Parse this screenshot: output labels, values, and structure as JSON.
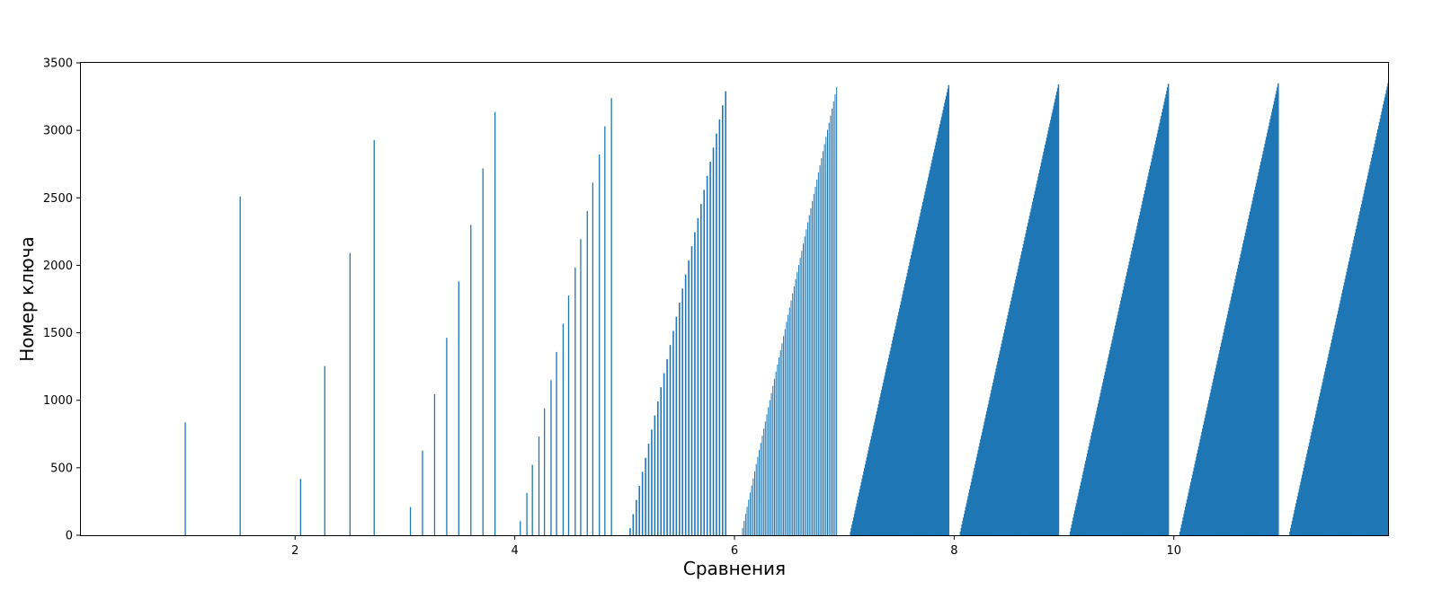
{
  "chart_data": {
    "type": "bar",
    "title": "",
    "xlabel": "Сравнения",
    "ylabel": "Номер ключа",
    "xlim": [
      0.05,
      11.95
    ],
    "ylim": [
      0,
      3500
    ],
    "grid": false,
    "legend": "none",
    "bar_color": "#1f77b4",
    "xticks": [
      2,
      4,
      6,
      8,
      10
    ],
    "yticks": [
      0,
      500,
      1000,
      1500,
      2000,
      2500,
      3000,
      3500
    ],
    "xtick_labels": [
      "2",
      "4",
      "6",
      "8",
      "10"
    ],
    "ytick_labels": [
      "0",
      "500",
      "1000",
      "1500",
      "2000",
      "2500",
      "3000",
      "3500"
    ],
    "points": [
      {
        "x": 1.0,
        "y": 836
      },
      {
        "x": 1.5,
        "y": 2510
      },
      {
        "x": 2.05,
        "y": 418
      },
      {
        "x": 2.27,
        "y": 1254
      },
      {
        "x": 2.5,
        "y": 2091
      },
      {
        "x": 2.72,
        "y": 2927
      },
      {
        "x": 3.05,
        "y": 209
      },
      {
        "x": 3.16,
        "y": 627
      },
      {
        "x": 3.27,
        "y": 1045
      },
      {
        "x": 3.38,
        "y": 1463
      },
      {
        "x": 3.49,
        "y": 1881
      },
      {
        "x": 3.6,
        "y": 2300
      },
      {
        "x": 3.71,
        "y": 2718
      },
      {
        "x": 3.82,
        "y": 3136
      },
      {
        "x": 4.05,
        "y": 104
      },
      {
        "x": 4.11,
        "y": 313
      },
      {
        "x": 4.16,
        "y": 522
      },
      {
        "x": 4.22,
        "y": 731
      },
      {
        "x": 4.27,
        "y": 940
      },
      {
        "x": 4.33,
        "y": 1149
      },
      {
        "x": 4.38,
        "y": 1358
      },
      {
        "x": 4.44,
        "y": 1567
      },
      {
        "x": 4.49,
        "y": 1776
      },
      {
        "x": 4.55,
        "y": 1985
      },
      {
        "x": 4.6,
        "y": 2194
      },
      {
        "x": 4.66,
        "y": 2403
      },
      {
        "x": 4.71,
        "y": 2612
      },
      {
        "x": 4.77,
        "y": 2821
      },
      {
        "x": 4.82,
        "y": 3030
      },
      {
        "x": 4.88,
        "y": 3239
      }
    ],
    "dense_ranges": [
      {
        "x_start": 5.05,
        "x_end": 5.92,
        "y_start": 52,
        "y_end": 3290,
        "count": 32
      },
      {
        "x_start": 6.06,
        "y_start": 0,
        "x_end": 6.93,
        "y_end": 3320,
        "count": 64
      },
      {
        "x_start": 7.05,
        "x_end": 7.95,
        "y_start": 0,
        "y_end": 3335,
        "count": 128
      },
      {
        "x_start": 8.05,
        "x_end": 8.95,
        "y_start": 0,
        "y_end": 3340,
        "count": 128
      },
      {
        "x_start": 9.05,
        "x_end": 9.95,
        "y_start": 0,
        "y_end": 3345,
        "count": 128
      },
      {
        "x_start": 10.05,
        "x_end": 10.95,
        "y_start": 0,
        "y_end": 3348,
        "count": 128
      },
      {
        "x_start": 11.05,
        "x_end": 11.95,
        "y_start": 0,
        "y_end": 3350,
        "count": 128
      }
    ]
  }
}
